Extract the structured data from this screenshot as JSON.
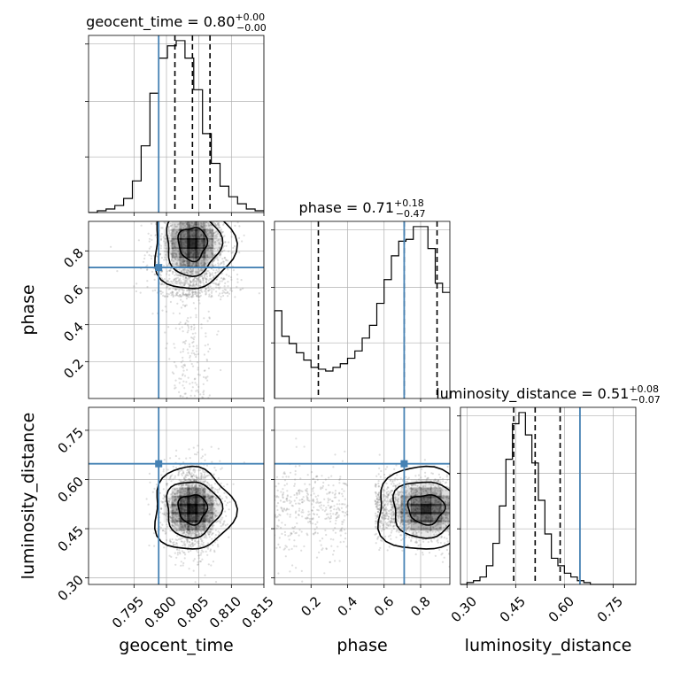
{
  "chart_data": {
    "type": "corner",
    "colors": {
      "truth": "#4682b4",
      "line": "#000000",
      "grid": "#b0b0b0",
      "density": "#000000"
    },
    "parameters": [
      {
        "name": "geocent_time",
        "axis_label": "geocent_time",
        "range": [
          0.788,
          0.815
        ],
        "ticks": [
          0.795,
          0.8,
          0.805,
          0.81,
          0.815
        ],
        "tick_labels": [
          "0.795",
          "0.800",
          "0.805",
          "0.810",
          "0.815"
        ],
        "truth": 0.7988,
        "quantiles": [
          0.8013,
          0.804,
          0.8067
        ],
        "title_main": "geocent_time = 0.80",
        "title_sup": "+0.00",
        "title_sub": "−0.00",
        "hist": {
          "edges_start": 0.788,
          "bin_width": 0.00135,
          "counts": [
            0,
            1,
            2,
            4,
            8,
            18,
            38,
            68,
            88,
            95,
            98,
            88,
            70,
            45,
            28,
            15,
            9,
            5,
            2,
            1
          ]
        }
      },
      {
        "name": "phase",
        "axis_label": "phase",
        "range": [
          0.0,
          0.96
        ],
        "ticks": [
          0.2,
          0.4,
          0.6,
          0.8
        ],
        "tick_labels": [
          "0.2",
          "0.4",
          "0.6",
          "0.8"
        ],
        "truth": 0.71,
        "quantiles": [
          0.24,
          0.71,
          0.89
        ],
        "title_main": "phase = 0.71",
        "title_sup": "+0.18",
        "title_sub": "−0.47",
        "hist": {
          "edges_start": 0.0,
          "bin_width": 0.04,
          "counts": [
            48,
            34,
            30,
            25,
            21,
            17,
            16,
            15,
            17,
            19,
            22,
            26,
            33,
            40,
            52,
            65,
            78,
            86,
            87,
            94,
            94,
            82,
            63,
            58
          ]
        }
      },
      {
        "name": "luminosity_distance",
        "axis_label": "luminosity_distance",
        "range": [
          0.28,
          0.82
        ],
        "ticks": [
          0.3,
          0.45,
          0.6,
          0.75
        ],
        "tick_labels": [
          "0.30",
          "0.45",
          "0.60",
          "0.75"
        ],
        "truth": 0.648,
        "quantiles": [
          0.444,
          0.51,
          0.587
        ],
        "title_main": "luminosity_distance = 0.51",
        "title_sup": "+0.08",
        "title_sub": "−0.07",
        "hist": {
          "edges_start": 0.28,
          "bin_width": 0.02,
          "counts": [
            0,
            1,
            2,
            4,
            10,
            22,
            42,
            67,
            86,
            92,
            80,
            65,
            45,
            27,
            14,
            10,
            6,
            4,
            2,
            1,
            0,
            0,
            0,
            0,
            0,
            0,
            0
          ]
        }
      }
    ],
    "pairs": [
      {
        "x": "geocent_time",
        "y": "phase",
        "row": 1,
        "col": 0
      },
      {
        "x": "geocent_time",
        "y": "luminosity_distance",
        "row": 2,
        "col": 0
      },
      {
        "x": "phase",
        "y": "luminosity_distance",
        "row": 2,
        "col": 1
      }
    ],
    "grid": true
  }
}
